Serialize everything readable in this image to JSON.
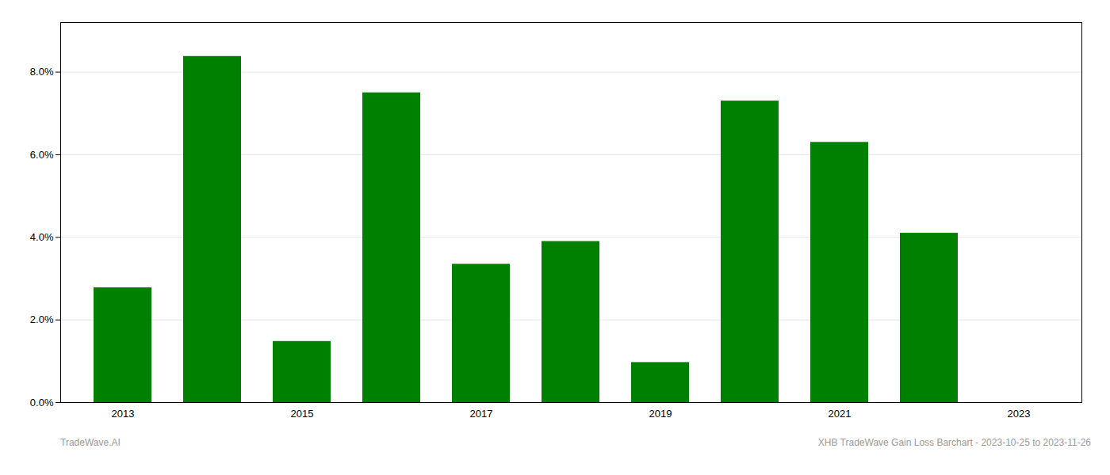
{
  "chart_data": {
    "type": "bar",
    "categories": [
      "2013",
      null,
      "2015",
      null,
      "2017",
      null,
      "2019",
      null,
      "2021",
      null,
      "2023"
    ],
    "values": [
      0.0278,
      0.0838,
      0.0148,
      0.075,
      0.0335,
      0.039,
      0.0097,
      0.073,
      0.063,
      0.041,
      0.0
    ],
    "color": "#008000",
    "ylim": [
      0,
      0.092
    ],
    "yticks": [
      {
        "value": 0.0,
        "label": "0.0%"
      },
      {
        "value": 0.02,
        "label": "2.0%"
      },
      {
        "value": 0.04,
        "label": "4.0%"
      },
      {
        "value": 0.06,
        "label": "6.0%"
      },
      {
        "value": 0.08,
        "label": "8.0%"
      }
    ],
    "grid": true,
    "annotations": [
      "TradeWave.AI",
      "XHB TradeWave Gain Loss Barchart - 2023-10-25 to 2023-11-26"
    ]
  }
}
